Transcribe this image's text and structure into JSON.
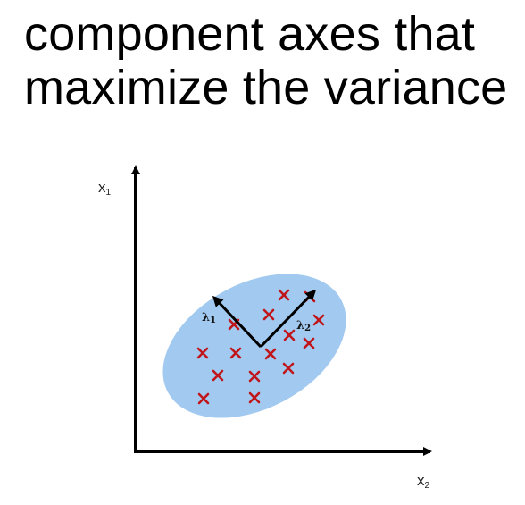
{
  "title": {
    "line1": "component axes that",
    "line2": "maximize the variance"
  },
  "axes": {
    "y_label": "x",
    "y_subscript": "1",
    "x_label": "x",
    "x_subscript": "2"
  },
  "eigenvectors": [
    {
      "label": "λ",
      "subscript": "1"
    },
    {
      "label": "λ",
      "subscript": "2"
    }
  ],
  "colors": {
    "ellipse_fill": "#a2c9ef",
    "points": "#c0161b",
    "axes": "#000000",
    "text": "#000000"
  },
  "icons": {
    "point_marker": "cross-mark-icon",
    "arrow": "arrowhead-icon"
  }
}
